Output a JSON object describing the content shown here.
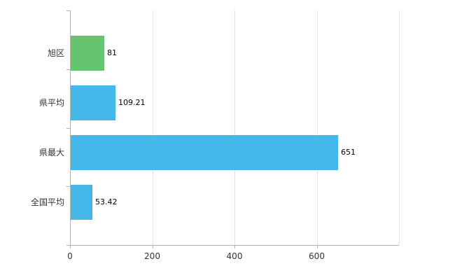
{
  "chart_data": {
    "type": "bar",
    "orientation": "horizontal",
    "title": "",
    "xlabel": "",
    "ylabel": "",
    "legend": "none",
    "grid": "vertical",
    "categories": [
      "旭区",
      "県平均",
      "県最大",
      "全国平均"
    ],
    "values": [
      81,
      109.21,
      651,
      53.42
    ],
    "value_labels": [
      "81",
      "109.21",
      "651",
      "53.42"
    ],
    "series": [
      {
        "name": "value",
        "values": [
          81,
          109.21,
          651,
          53.42
        ]
      }
    ],
    "bar_colors": [
      "#66c36f",
      "#45b8e9",
      "#45b8e9",
      "#45b8e9"
    ],
    "xlim": [
      0,
      800
    ],
    "x_tick_values": [
      0,
      200,
      400,
      600
    ],
    "x_tick_labels": [
      "0",
      "200",
      "400",
      "600"
    ],
    "grid_values": [
      200,
      400,
      600,
      800
    ],
    "colors": {
      "axis": "#b3b3b3",
      "grid": "#e4e4e4",
      "tick_label": "#333333",
      "category_label": "#333333",
      "value_label": "#000000",
      "background": "#ffffff"
    }
  }
}
